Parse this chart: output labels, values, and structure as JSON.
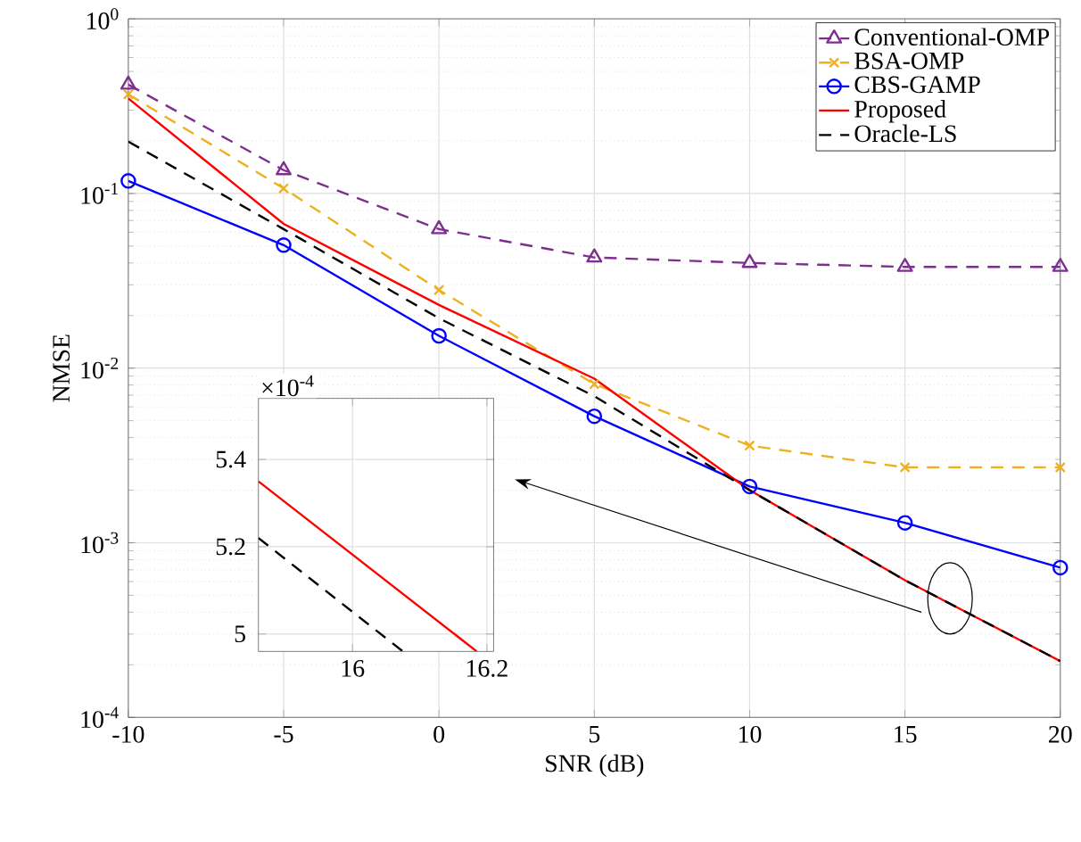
{
  "chart_data": [
    {
      "type": "line",
      "xlabel": "SNR (dB)",
      "ylabel": "NMSE",
      "x": [
        -10,
        -5,
        0,
        5,
        10,
        15,
        20
      ],
      "log": "y",
      "grid": true,
      "legend": "top right",
      "xlim": [
        -10,
        20
      ],
      "xticks": [
        -10,
        -5,
        0,
        5,
        10,
        15,
        20
      ],
      "ylim": [
        0.0001,
        1
      ],
      "yticks": [
        {
          "value": 0.0001,
          "label": "10$^{-4}$"
        },
        {
          "value": 0.001,
          "label": "10$^{-3}$"
        },
        {
          "value": 0.01,
          "label": "10$^{-2}$"
        },
        {
          "value": 0.1,
          "label": "10$^{-1}$"
        },
        {
          "value": 1,
          "label": "10$^{0}$"
        }
      ],
      "series": [
        {
          "name": "Conventional-OMP",
          "color": "#7e2f8e",
          "marker": "triangle",
          "line_style": "dashed",
          "values": [
            0.42,
            0.136,
            0.0625,
            0.043,
            0.04,
            0.038,
            0.038
          ]
        },
        {
          "name": "BSA-OMP",
          "color": "#edb120",
          "marker": "cross",
          "line_style": "dashed",
          "values": [
            0.37,
            0.107,
            0.028,
            0.0081,
            0.0036,
            0.0027,
            0.0027
          ]
        },
        {
          "name": "CBS-GAMP",
          "color": "#0000ff",
          "marker": "circle",
          "line_style": "solid",
          "values": [
            0.118,
            0.0506,
            0.0153,
            0.0053,
            0.0021,
            0.0013,
            0.00072
          ]
        },
        {
          "name": "Proposed",
          "color": "#ff0000",
          "marker": "none",
          "line_style": "solid",
          "values": [
            0.35,
            0.067,
            0.023,
            0.0087,
            0.002,
            0.00061,
            0.00021
          ]
        },
        {
          "name": "Oracle-LS",
          "color": "#000000",
          "marker": "none",
          "line_style": "dashed",
          "values": [
            0.198,
            0.0625,
            0.0193,
            0.0069,
            0.002,
            0.00061,
            0.00021
          ]
        }
      ]
    },
    {
      "type": "line",
      "grid": true,
      "annotations": [
        "×10$^{-4}$"
      ],
      "xlim": [
        15.86,
        16.21
      ],
      "xticks": [
        16,
        16.2
      ],
      "ylim": [
        4.96,
        5.54
      ],
      "yticks": [
        5,
        5.2,
        5.4
      ],
      "series": [
        {
          "color": "#ff0000",
          "line_style": "solid",
          "x": [
            15.86,
            16.185
          ],
          "values": [
            5.35,
            4.96
          ]
        },
        {
          "color": "#000000",
          "line_style": "dashed",
          "x": [
            15.86,
            16.075
          ],
          "values": [
            5.22,
            4.96
          ]
        }
      ]
    }
  ]
}
